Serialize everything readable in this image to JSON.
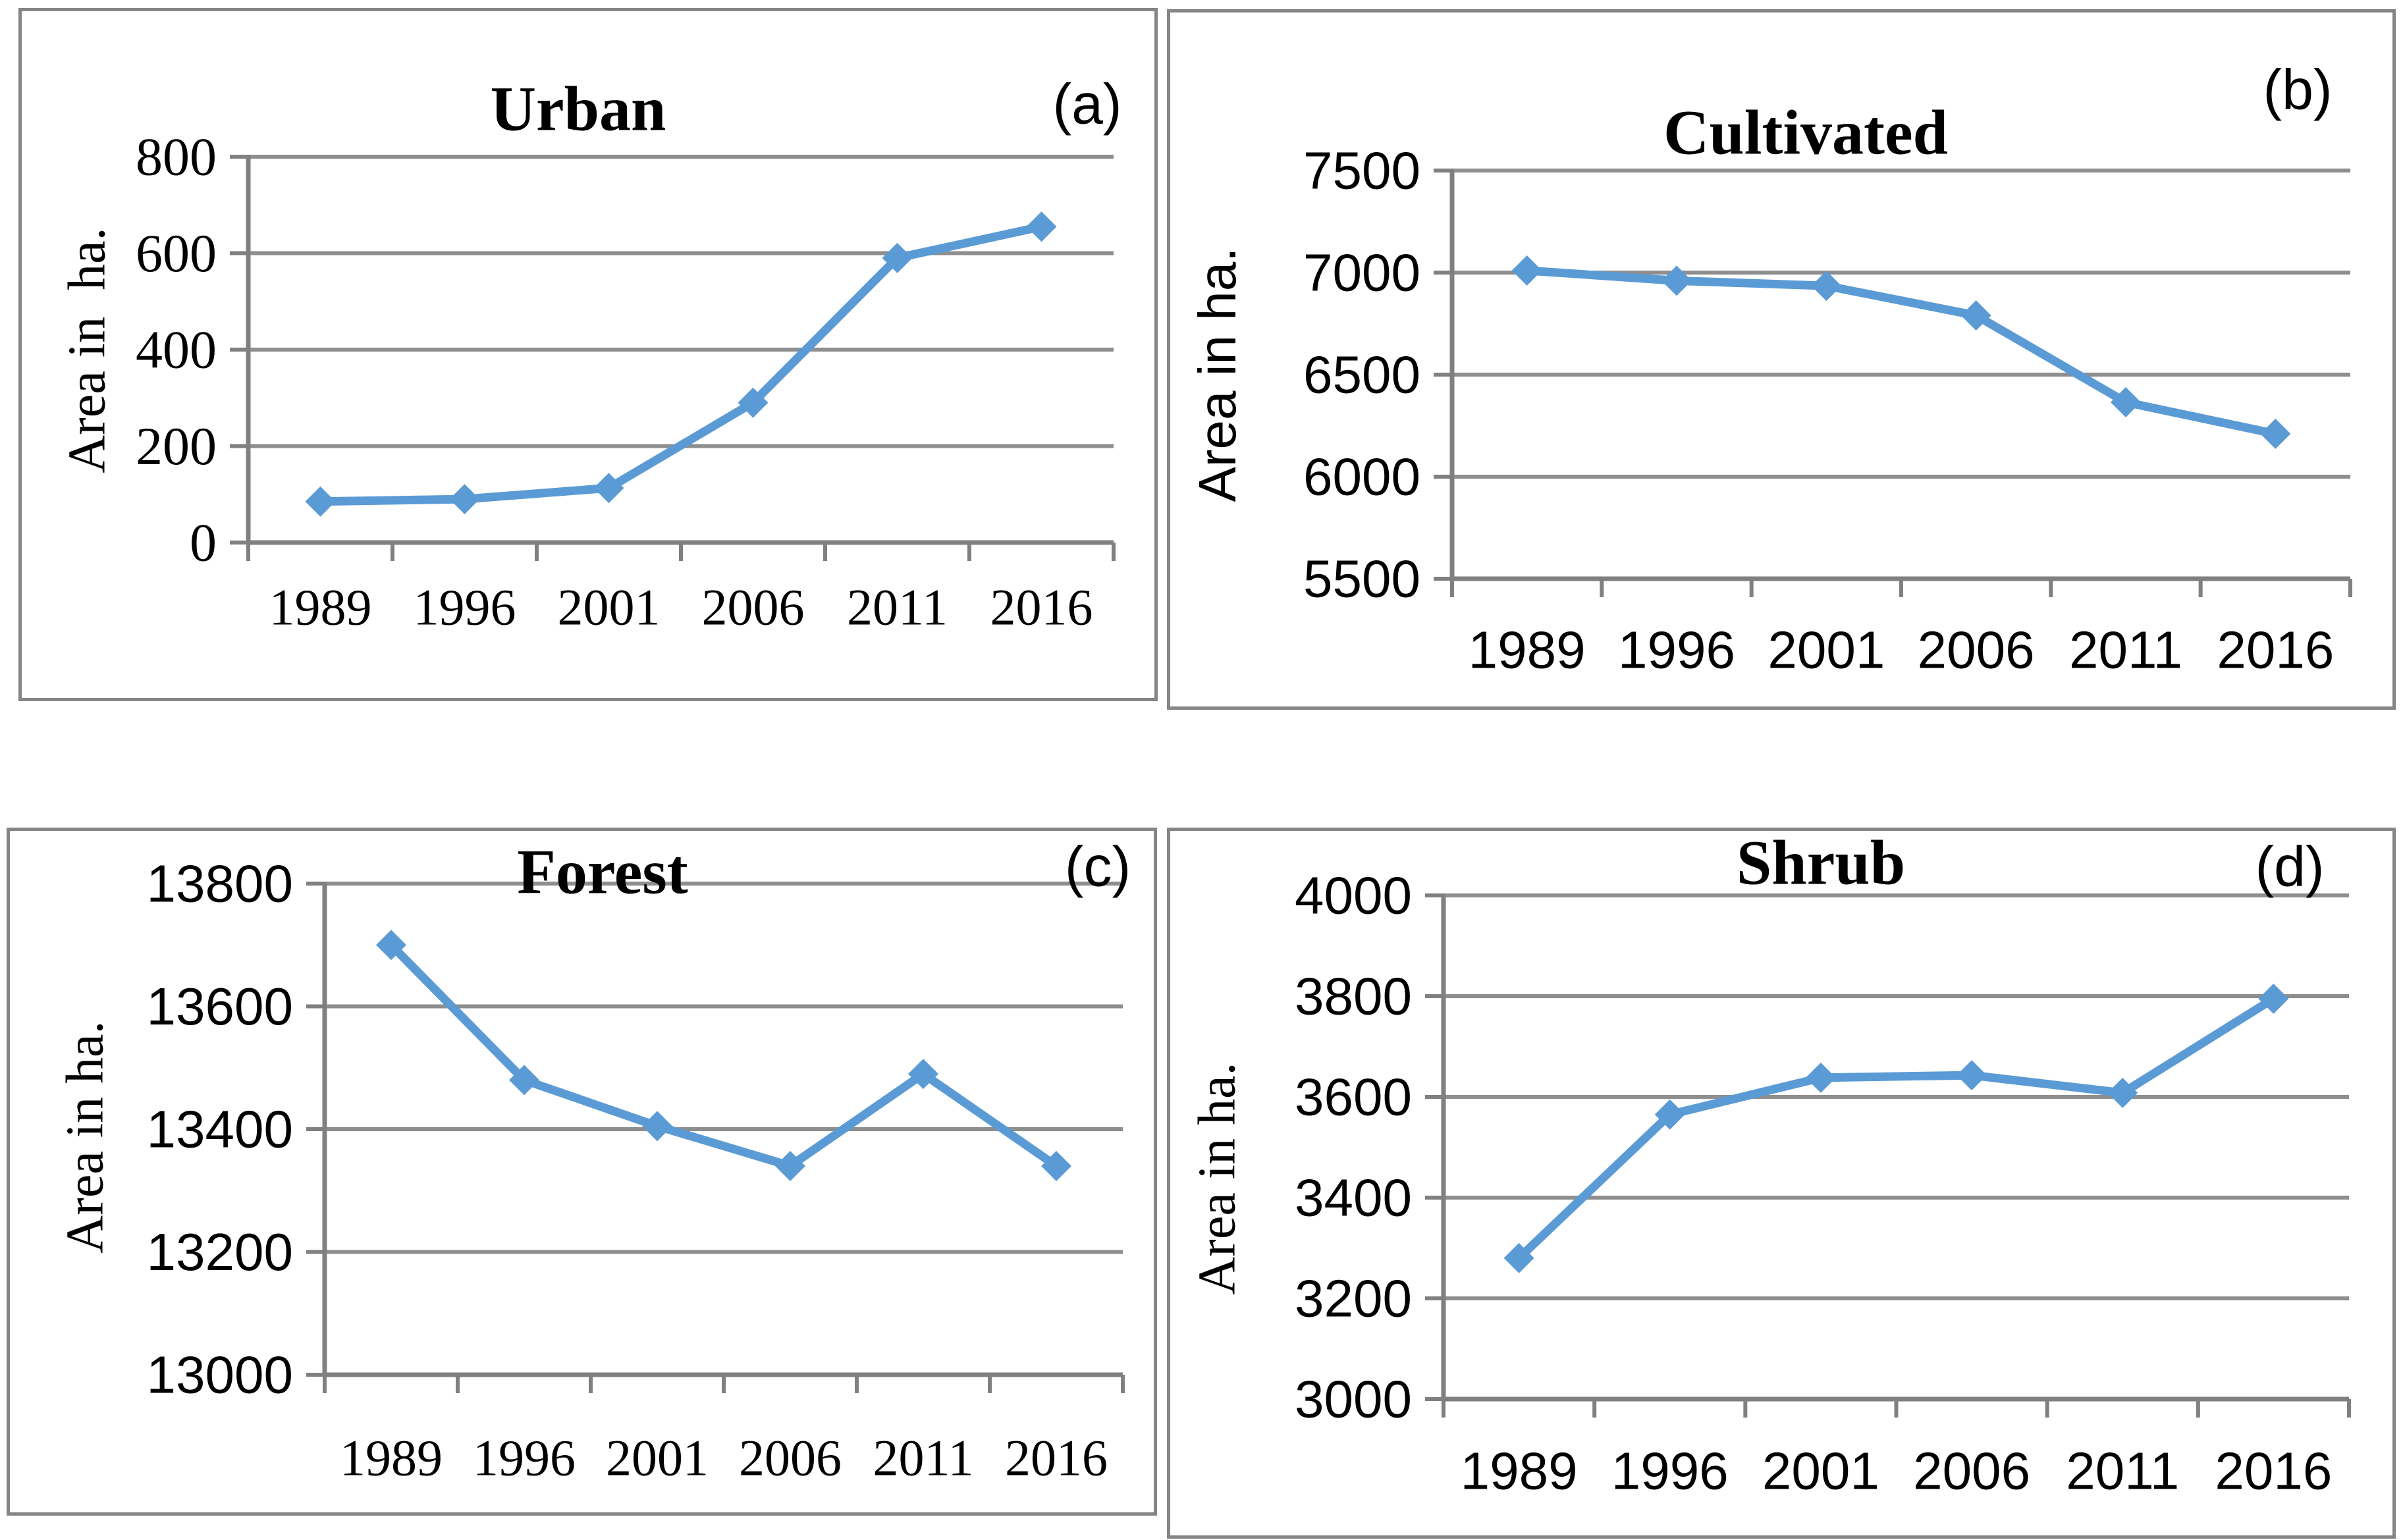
{
  "colors": {
    "line": "#5B9BD5",
    "marker": "#5B9BD5",
    "grid": "#8E8E8E",
    "axis": "#808080",
    "panel_border": "#858585",
    "text": "#000000",
    "background": "#FFFFFF"
  },
  "chart_data": [
    {
      "type": "line",
      "id": "urban",
      "title": "Urban",
      "annotation": "(a)",
      "ylabel": "Area in  ha.",
      "xlabel": "",
      "categories": [
        "1989",
        "1996",
        "2001",
        "2006",
        "2011",
        "2016"
      ],
      "values": [
        85,
        90,
        113,
        290,
        590,
        655
      ],
      "ylim": [
        0,
        800
      ],
      "ystep": 200,
      "ytick_labels": [
        "800",
        "600",
        "400",
        "200",
        "0"
      ],
      "grid": true,
      "legend_position": "none",
      "marker": "diamond"
    },
    {
      "type": "line",
      "id": "cultivated",
      "title": "Cultivated",
      "annotation": "(b)",
      "ylabel": "Area in ha.",
      "xlabel": "",
      "categories": [
        "1989",
        "1996",
        "2001",
        "2006",
        "2011",
        "2016"
      ],
      "values": [
        7010,
        6960,
        6935,
        6790,
        6365,
        6210
      ],
      "ylim": [
        5500,
        7500
      ],
      "ystep": 500,
      "ytick_labels": [
        "7500",
        "7000",
        "6500",
        "6000",
        "5500"
      ],
      "grid": true,
      "legend_position": "none",
      "marker": "diamond"
    },
    {
      "type": "line",
      "id": "forest",
      "title": "Forest",
      "annotation": "(c)",
      "ylabel": "Area in ha.",
      "xlabel": "",
      "categories": [
        "1989",
        "1996",
        "2001",
        "2006",
        "2011",
        "2016"
      ],
      "values": [
        13700,
        13480,
        13405,
        13340,
        13490,
        13340
      ],
      "ylim": [
        13000,
        13800
      ],
      "ystep": 200,
      "ytick_labels": [
        "13800",
        "13600",
        "13400",
        "13200",
        "13000"
      ],
      "grid": true,
      "legend_position": "none",
      "marker": "diamond"
    },
    {
      "type": "line",
      "id": "shrub",
      "title": "Shrub",
      "annotation": "(d)",
      "ylabel": "Area in ha.",
      "xlabel": "",
      "categories": [
        "1989",
        "1996",
        "2001",
        "2006",
        "2011",
        "2016"
      ],
      "values": [
        3280,
        3565,
        3638,
        3643,
        3608,
        3795
      ],
      "ylim": [
        3000,
        4000
      ],
      "ystep": 200,
      "ytick_labels": [
        "4000",
        "3800",
        "3600",
        "3400",
        "3200",
        "3000"
      ],
      "grid": true,
      "legend_position": "none",
      "marker": "diamond"
    }
  ]
}
